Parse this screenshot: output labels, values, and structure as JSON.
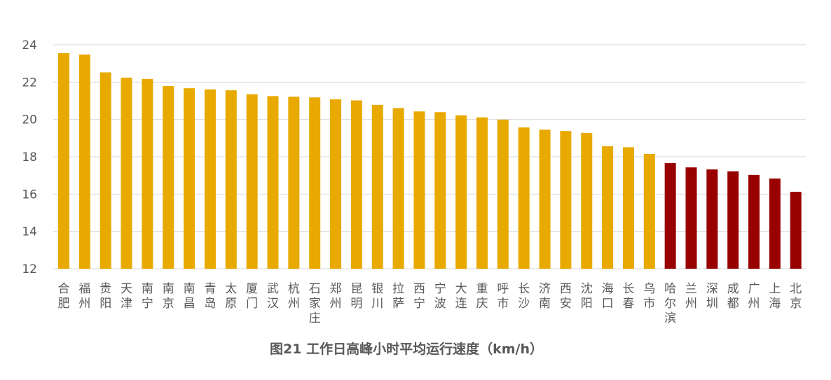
{
  "chart_data": {
    "type": "bar",
    "title": "图21 工作日高峰小时平均运行速度（km/h）",
    "xlabel": "",
    "ylabel": "",
    "ylim": [
      12,
      24
    ],
    "yticks": [
      12,
      14,
      16,
      18,
      20,
      22,
      24
    ],
    "grid": true,
    "legend": "none",
    "categories": [
      "合肥",
      "福州",
      "贵阳",
      "天津",
      "南宁",
      "南京",
      "南昌",
      "青岛",
      "太原",
      "厦门",
      "武汉",
      "杭州",
      "石家庄",
      "郑州",
      "昆明",
      "银川",
      "拉萨",
      "西宁",
      "宁波",
      "大连",
      "重庆",
      "呼市",
      "长沙",
      "济南",
      "西安",
      "沈阳",
      "海口",
      "长春",
      "乌市",
      "哈尔滨",
      "兰州",
      "深圳",
      "成都",
      "广州",
      "上海",
      "北京"
    ],
    "values": [
      23.55,
      23.48,
      22.52,
      22.24,
      22.17,
      21.79,
      21.67,
      21.61,
      21.56,
      21.35,
      21.25,
      21.22,
      21.18,
      21.08,
      21.02,
      20.78,
      20.61,
      20.43,
      20.39,
      20.22,
      20.11,
      19.99,
      19.57,
      19.45,
      19.38,
      19.28,
      18.56,
      18.51,
      18.15,
      17.66,
      17.43,
      17.32,
      17.22,
      17.03,
      16.83,
      16.12
    ],
    "highlight_from_index": 29
  },
  "colors": {
    "bar_default": "#e8a900",
    "bar_highlight": "#990000",
    "grid": "#d9d9d9",
    "text": "#595959",
    "background": "#ffffff"
  }
}
